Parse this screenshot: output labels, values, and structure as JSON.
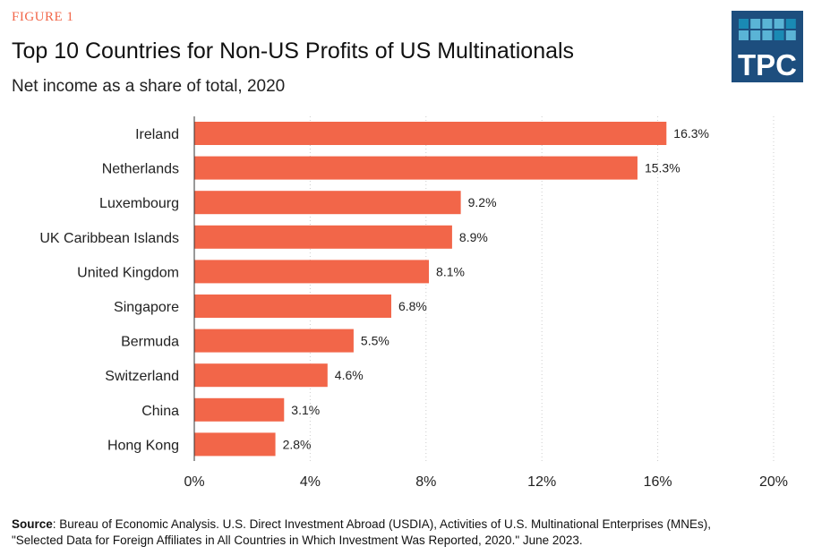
{
  "figure_label": "FIGURE 1",
  "logo": {
    "text": "TPC",
    "bg": "#1d4e7e",
    "light": "#5ab4d6",
    "dark": "#1a8ab4"
  },
  "source": {
    "label": "Source",
    "text": ": Bureau of Economic Analysis. U.S. Direct Investment Abroad (USDIA), Activities of U.S. Multinational Enterprises (MNEs),",
    "line2": "\"Selected Data for Foreign Affiliates in All Countries in Which Investment Was Reported, 2020.\" June 2023."
  },
  "chart_data": {
    "type": "bar",
    "orientation": "horizontal",
    "title": "Top 10 Countries for Non-US Profits of US Multinationals",
    "subtitle": "Net income as a share of total, 2020",
    "categories": [
      "Ireland",
      "Netherlands",
      "Luxembourg",
      "UK Caribbean Islands",
      "United Kingdom",
      "Singapore",
      "Bermuda",
      "Switzerland",
      "China",
      "Hong Kong"
    ],
    "values": [
      16.3,
      15.3,
      9.2,
      8.9,
      8.1,
      6.8,
      5.5,
      4.6,
      3.1,
      2.8
    ],
    "data_labels": [
      "16.3%",
      "15.3%",
      "9.2%",
      "8.9%",
      "8.1%",
      "6.8%",
      "5.5%",
      "4.6%",
      "3.1%",
      "2.8%"
    ],
    "xlim": [
      0,
      20
    ],
    "xticks": [
      0,
      4,
      8,
      12,
      16,
      20
    ],
    "xtick_labels": [
      "0%",
      "4%",
      "8%",
      "12%",
      "16%",
      "20%"
    ],
    "grid": "vertical dotted",
    "bar_color": "#f26649"
  }
}
